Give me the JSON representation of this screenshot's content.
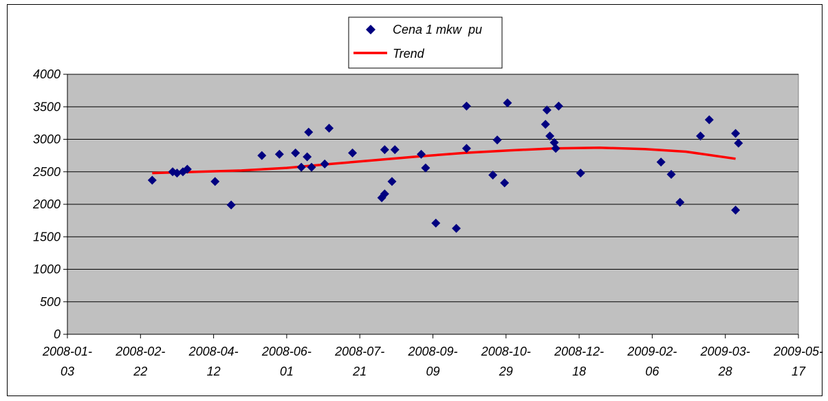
{
  "chart_data": {
    "type": "scatter",
    "x_axis": {
      "type": "date",
      "range": [
        "2008-01-03",
        "2009-05-17"
      ],
      "ticks": [
        "2008-01-03",
        "2008-02-22",
        "2008-04-12",
        "2008-06-01",
        "2008-07-21",
        "2008-09-09",
        "2008-10-29",
        "2008-12-18",
        "2009-02-06",
        "2009-03-28",
        "2009-05-17"
      ],
      "tick_labels": [
        [
          "2008-01-",
          "03"
        ],
        [
          "2008-02-",
          "22"
        ],
        [
          "2008-04-",
          "12"
        ],
        [
          "2008-06-",
          "01"
        ],
        [
          "2008-07-",
          "21"
        ],
        [
          "2008-09-",
          "09"
        ],
        [
          "2008-10-",
          "29"
        ],
        [
          "2008-12-",
          "18"
        ],
        [
          "2009-02-",
          "06"
        ],
        [
          "2009-03-",
          "28"
        ],
        [
          "2009-05-",
          "17"
        ]
      ]
    },
    "y_axis": {
      "range": [
        0,
        4000
      ],
      "ticks": [
        0,
        500,
        1000,
        1500,
        2000,
        2500,
        3000,
        3500,
        4000
      ],
      "tick_labels": [
        "0",
        "500",
        "1000",
        "1500",
        "2000",
        "2500",
        "3000",
        "3500",
        "4000"
      ]
    },
    "grid": "horizontal",
    "plot_background": "#c0c0c0",
    "legend_position": "top-center",
    "series": [
      {
        "name": "Cena 1 mkw  pu",
        "kind": "scatter",
        "marker": "diamond",
        "color": "#000080",
        "points": [
          [
            "2008-03-01",
            2370
          ],
          [
            "2008-03-15",
            2500
          ],
          [
            "2008-03-18",
            2480
          ],
          [
            "2008-03-22",
            2500
          ],
          [
            "2008-03-25",
            2540
          ],
          [
            "2008-04-13",
            2350
          ],
          [
            "2008-04-24",
            1990
          ],
          [
            "2008-05-15",
            2750
          ],
          [
            "2008-05-27",
            2770
          ],
          [
            "2008-06-07",
            2790
          ],
          [
            "2008-06-11",
            2570
          ],
          [
            "2008-06-15",
            2730
          ],
          [
            "2008-06-16",
            3110
          ],
          [
            "2008-06-18",
            2570
          ],
          [
            "2008-06-27",
            2620
          ],
          [
            "2008-06-30",
            3170
          ],
          [
            "2008-07-16",
            2790
          ],
          [
            "2008-08-05",
            2100
          ],
          [
            "2008-08-07",
            2160
          ],
          [
            "2008-08-07",
            2840
          ],
          [
            "2008-08-12",
            2350
          ],
          [
            "2008-08-14",
            2840
          ],
          [
            "2008-09-01",
            2770
          ],
          [
            "2008-09-04",
            2560
          ],
          [
            "2008-09-11",
            1710
          ],
          [
            "2008-09-25",
            1630
          ],
          [
            "2008-10-02",
            3510
          ],
          [
            "2008-10-02",
            2860
          ],
          [
            "2008-10-20",
            2450
          ],
          [
            "2008-10-23",
            2990
          ],
          [
            "2008-10-28",
            2330
          ],
          [
            "2008-10-30",
            3560
          ],
          [
            "2008-11-25",
            3230
          ],
          [
            "2008-11-26",
            3450
          ],
          [
            "2008-11-28",
            3050
          ],
          [
            "2008-12-01",
            2950
          ],
          [
            "2008-12-02",
            2860
          ],
          [
            "2008-12-04",
            3510
          ],
          [
            "2008-12-19",
            2480
          ],
          [
            "2009-02-12",
            2650
          ],
          [
            "2009-02-19",
            2460
          ],
          [
            "2009-02-25",
            2030
          ],
          [
            "2009-03-11",
            3050
          ],
          [
            "2009-03-17",
            3300
          ],
          [
            "2009-04-04",
            3090
          ],
          [
            "2009-04-04",
            1910
          ],
          [
            "2009-04-06",
            2940
          ]
        ]
      },
      {
        "name": "Trend",
        "kind": "line",
        "color": "#ff0000",
        "points": [
          [
            "2008-03-01",
            2480
          ],
          [
            "2008-04-01",
            2500
          ],
          [
            "2008-05-01",
            2520
          ],
          [
            "2008-06-01",
            2560
          ],
          [
            "2008-07-01",
            2620
          ],
          [
            "2008-08-01",
            2680
          ],
          [
            "2008-09-01",
            2740
          ],
          [
            "2008-10-01",
            2790
          ],
          [
            "2008-11-01",
            2830
          ],
          [
            "2008-12-01",
            2860
          ],
          [
            "2009-01-01",
            2870
          ],
          [
            "2009-02-01",
            2850
          ],
          [
            "2009-03-01",
            2810
          ],
          [
            "2009-04-04",
            2700
          ]
        ]
      }
    ]
  }
}
